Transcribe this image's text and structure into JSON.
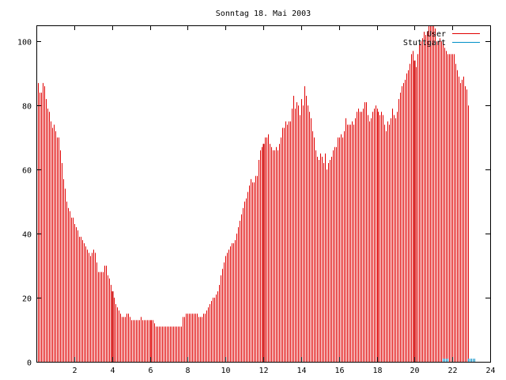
{
  "chart_data": {
    "type": "bar",
    "title": "Sonntag 18. Mai 2003",
    "xlabel": "",
    "ylabel": "",
    "xlim": [
      0,
      24
    ],
    "ylim": [
      0,
      105
    ],
    "x_ticks": [
      2,
      4,
      6,
      8,
      10,
      12,
      14,
      16,
      18,
      20,
      22,
      24
    ],
    "y_ticks": [
      0,
      20,
      40,
      60,
      80,
      100
    ],
    "grid": false,
    "legend_position": "top-right",
    "series": [
      {
        "name": "User",
        "color": "#e00000",
        "interval_minutes": 5,
        "x_start": 0,
        "values": [
          90,
          87,
          84,
          84,
          87,
          86,
          82,
          79,
          78,
          75,
          73,
          74,
          72,
          70,
          70,
          66,
          62,
          57,
          54,
          50,
          48,
          47,
          45,
          45,
          43,
          42,
          41,
          39,
          39,
          38,
          37,
          36,
          35,
          34,
          33,
          34,
          35,
          34,
          31,
          28,
          28,
          28,
          28,
          30,
          30,
          27,
          26,
          24,
          22,
          20,
          18,
          17,
          16,
          15,
          14,
          14,
          14,
          15,
          15,
          14,
          13,
          13,
          13,
          13,
          13,
          13,
          14,
          13,
          13,
          13,
          13,
          13,
          13,
          13,
          13,
          12,
          11,
          11,
          11,
          11,
          11,
          11,
          11,
          11,
          11,
          11,
          11,
          11,
          11,
          11,
          11,
          11,
          11,
          14,
          14,
          15,
          15,
          15,
          15,
          15,
          15,
          15,
          15,
          14,
          14,
          14,
          15,
          15,
          16,
          17,
          18,
          19,
          20,
          20,
          21,
          22,
          24,
          27,
          29,
          31,
          33,
          34,
          35,
          36,
          37,
          37,
          38,
          40,
          42,
          44,
          46,
          48,
          50,
          51,
          53,
          55,
          57,
          56,
          56,
          58,
          58,
          63,
          66,
          67,
          68,
          70,
          70,
          71,
          68,
          67,
          66,
          66,
          67,
          66,
          68,
          70,
          73,
          73,
          75,
          74,
          75,
          75,
          79,
          83,
          79,
          81,
          80,
          77,
          82,
          80,
          86,
          83,
          80,
          78,
          76,
          72,
          70,
          66,
          64,
          63,
          65,
          64,
          62,
          65,
          60,
          62,
          63,
          64,
          66,
          67,
          67,
          70,
          70,
          71,
          70,
          72,
          76,
          74,
          74,
          74,
          75,
          74,
          76,
          78,
          79,
          78,
          78,
          79,
          81,
          81,
          77,
          75,
          76,
          78,
          79,
          80,
          79,
          78,
          77,
          78,
          77,
          74,
          72,
          75,
          74,
          76,
          79,
          77,
          76,
          78,
          82,
          84,
          86,
          87,
          88,
          90,
          91,
          93,
          96,
          97,
          94,
          92,
          96,
          99,
          100,
          101,
          103,
          102,
          103,
          105,
          107,
          107,
          106,
          104,
          100,
          100,
          101,
          100,
          100,
          98,
          97,
          96,
          96,
          96,
          96,
          96,
          93,
          91,
          89,
          87,
          88,
          89,
          86,
          85,
          80
        ]
      },
      {
        "name": "Stuttgart",
        "color": "#0090c8",
        "interval_minutes": 5,
        "x_start": 0,
        "values": [
          0,
          0,
          0,
          0,
          0,
          0,
          0,
          0,
          0,
          0,
          0,
          0,
          0,
          0,
          0,
          0,
          0,
          0,
          0,
          0,
          0,
          0,
          0,
          0,
          0,
          0,
          0,
          0,
          0,
          0,
          0,
          0,
          0,
          0,
          0,
          0,
          0,
          0,
          0,
          0,
          0,
          0,
          0,
          0,
          0,
          0,
          0,
          0,
          0,
          0,
          0,
          0,
          0,
          0,
          0,
          0,
          0,
          0,
          0,
          0,
          0,
          0,
          0,
          0,
          0,
          0,
          0,
          0,
          0,
          0,
          0,
          0,
          0,
          0,
          0,
          0,
          0,
          0,
          0,
          0,
          0,
          0,
          0,
          0,
          0,
          0,
          0,
          0,
          0,
          0,
          0,
          0,
          0,
          0,
          0,
          0,
          0,
          0,
          0,
          0,
          0,
          0,
          0,
          0,
          0,
          0,
          0,
          0,
          0,
          0,
          0,
          0,
          0,
          0,
          0,
          0,
          0,
          0,
          0,
          0,
          0,
          0,
          0,
          0,
          0,
          0,
          0,
          0,
          0,
          0,
          0,
          0,
          0,
          0,
          0,
          0,
          0,
          0,
          0,
          0,
          0,
          0,
          0,
          0,
          0,
          0,
          0,
          0,
          0,
          0,
          0,
          0,
          0,
          0,
          0,
          0,
          0,
          0,
          0,
          0,
          0,
          0,
          0,
          0,
          0,
          0,
          0,
          0,
          0,
          0,
          0,
          0,
          0,
          0,
          0,
          0,
          0,
          0,
          0,
          0,
          0,
          0,
          0,
          0,
          0,
          0,
          0,
          0,
          0,
          0,
          0,
          0,
          0,
          0,
          0,
          0,
          0,
          0,
          0,
          0,
          0,
          0,
          0,
          0,
          0,
          0,
          0,
          0,
          0,
          0,
          0,
          0,
          0,
          0,
          0,
          0,
          0,
          0,
          0,
          0,
          0,
          0,
          0,
          0,
          0,
          0,
          0,
          0,
          0,
          0,
          0,
          0,
          0,
          0,
          0,
          0,
          0,
          0,
          0,
          0,
          0,
          0,
          0,
          0,
          0,
          0,
          0,
          0,
          0,
          0,
          0,
          0,
          0,
          0,
          0,
          0,
          0,
          0,
          1,
          1,
          1,
          1,
          0,
          0,
          0,
          0,
          0,
          0,
          0,
          0,
          0,
          0,
          0,
          0,
          1,
          1,
          1,
          1,
          1,
          0
        ]
      }
    ],
    "highlight_lines": {
      "hours": [
        4,
        12,
        20
      ],
      "color": "#cc0000"
    },
    "axis_color": "#000000"
  }
}
